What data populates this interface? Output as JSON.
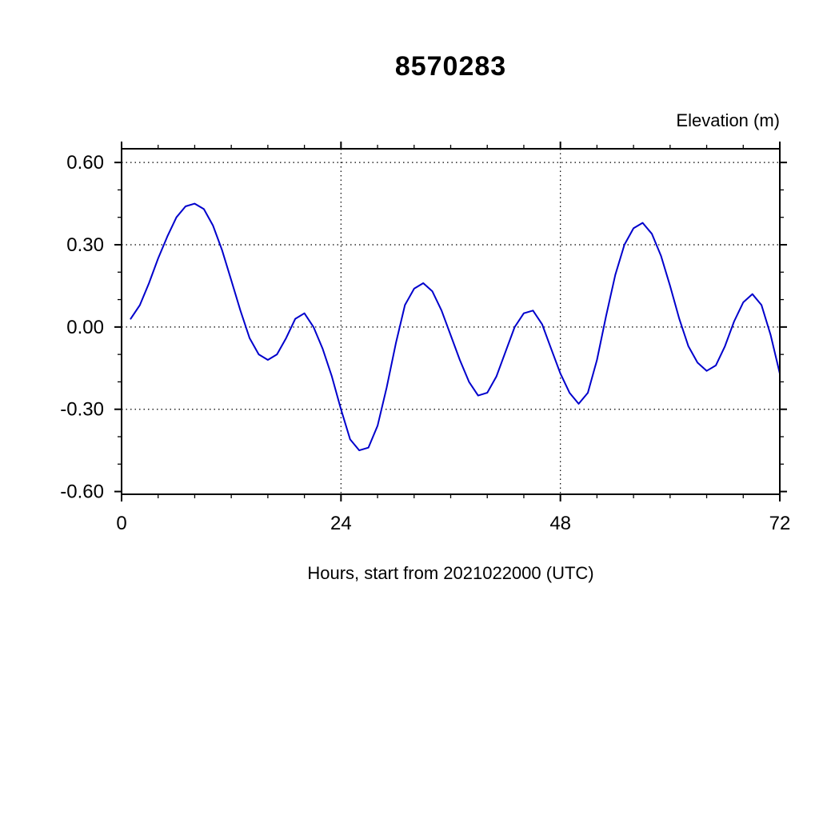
{
  "page": {
    "background": "#ffffff"
  },
  "chart_data": {
    "type": "line",
    "title": "8570283",
    "ylabel": "Elevation (m)",
    "xlabel": "Hours, start from 2021022000 (UTC)",
    "xlim": [
      0,
      72
    ],
    "ylim": [
      -0.61,
      0.65
    ],
    "x_major_ticks": [
      0,
      24,
      48,
      72
    ],
    "x_tick_labels": [
      "0",
      "24",
      "48",
      "72"
    ],
    "x_minor_step": 4,
    "y_major_ticks": [
      0.6,
      0.3,
      0.0,
      -0.3,
      -0.6
    ],
    "y_tick_labels": [
      "0.60",
      "0.30",
      "0.00",
      "-0.30",
      "-0.60"
    ],
    "y_minor_step": 0.1,
    "x_gridlines": [
      24,
      48
    ],
    "y_gridlines": [
      0.6,
      0.3,
      0.0,
      -0.3
    ],
    "grid_style": "dotted",
    "grid_color": "#000000",
    "frame_color": "#000000",
    "line_color": "#0000cc",
    "line_width": 2,
    "series": [
      {
        "name": "elevation",
        "x": [
          1,
          2,
          3,
          4,
          5,
          6,
          7,
          8,
          9,
          10,
          11,
          12,
          13,
          14,
          15,
          16,
          17,
          18,
          19,
          20,
          21,
          22,
          23,
          24,
          25,
          26,
          27,
          28,
          29,
          30,
          31,
          32,
          33,
          34,
          35,
          36,
          37,
          38,
          39,
          40,
          41,
          42,
          43,
          44,
          45,
          46,
          47,
          48,
          49,
          50,
          51,
          52,
          53,
          54,
          55,
          56,
          57,
          58,
          59,
          60,
          61,
          62,
          63,
          64,
          65,
          66,
          67,
          68,
          69,
          70,
          71,
          72
        ],
        "y": [
          0.03,
          0.08,
          0.16,
          0.25,
          0.33,
          0.4,
          0.44,
          0.45,
          0.43,
          0.37,
          0.28,
          0.17,
          0.06,
          -0.04,
          -0.1,
          -0.12,
          -0.1,
          -0.04,
          0.03,
          0.05,
          0.0,
          -0.08,
          -0.18,
          -0.3,
          -0.41,
          -0.45,
          -0.44,
          -0.36,
          -0.22,
          -0.06,
          0.08,
          0.14,
          0.16,
          0.13,
          0.06,
          -0.03,
          -0.12,
          -0.2,
          -0.25,
          -0.24,
          -0.18,
          -0.09,
          0.0,
          0.05,
          0.06,
          0.01,
          -0.08,
          -0.17,
          -0.24,
          -0.28,
          -0.24,
          -0.12,
          0.04,
          0.19,
          0.3,
          0.36,
          0.38,
          0.34,
          0.26,
          0.15,
          0.03,
          -0.07,
          -0.13,
          -0.16,
          -0.14,
          -0.07,
          0.02,
          0.09,
          0.12,
          0.08,
          -0.03,
          -0.17
        ]
      }
    ]
  }
}
